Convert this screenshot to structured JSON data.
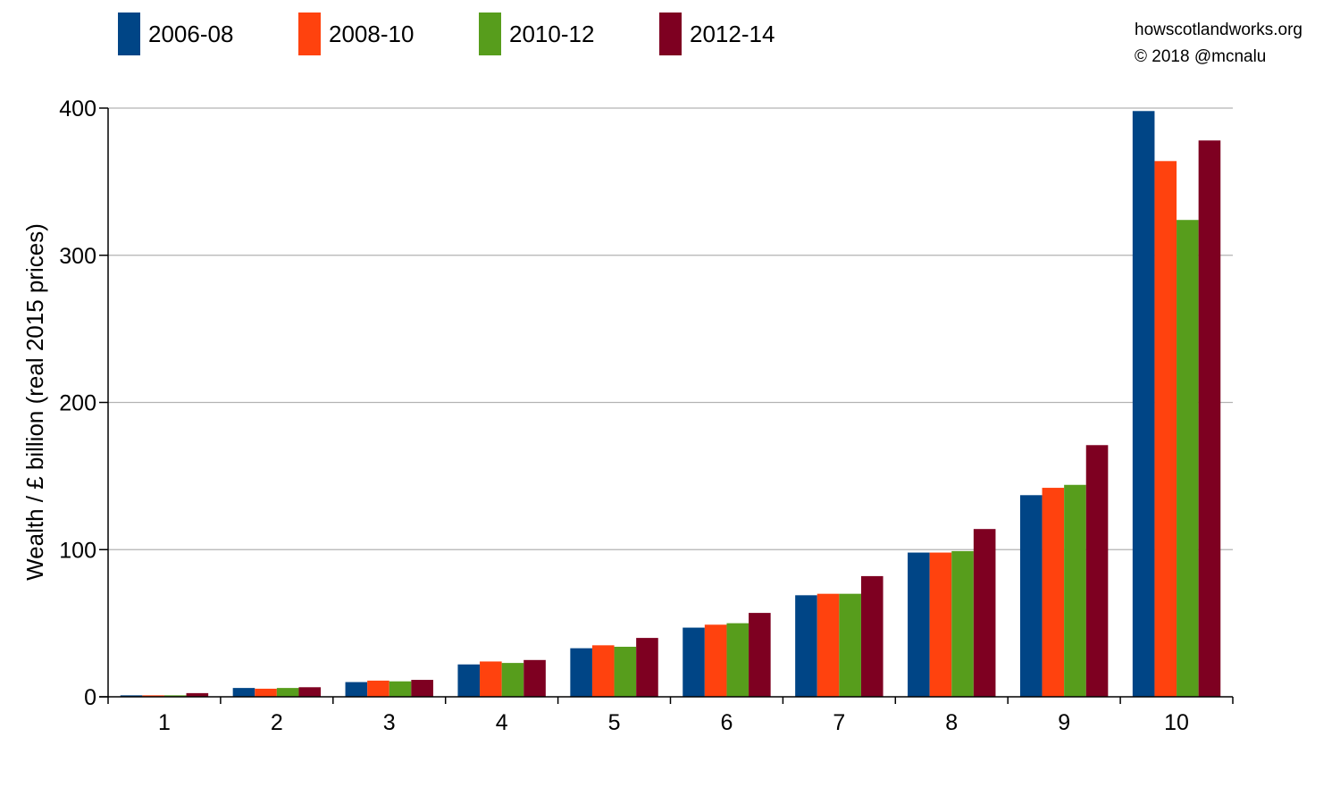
{
  "credits": {
    "site": "howscotlandworks.org",
    "copyright": "© 2018  @mcnalu"
  },
  "chart_data": {
    "type": "bar",
    "title": "",
    "xlabel": "",
    "ylabel": "Wealth / £ billion (real 2015 prices)",
    "ylim": [
      0,
      400
    ],
    "yticks": [
      0,
      100,
      200,
      300,
      400
    ],
    "grid": true,
    "legend_position": "top",
    "categories": [
      "1",
      "2",
      "3",
      "4",
      "5",
      "6",
      "7",
      "8",
      "9",
      "10"
    ],
    "series": [
      {
        "name": "2006-08",
        "color": "#004586",
        "values": [
          1,
          6,
          10,
          22,
          33,
          47,
          69,
          98,
          137,
          398
        ]
      },
      {
        "name": "2008-10",
        "color": "#ff420e",
        "values": [
          1,
          5.5,
          11,
          24,
          35,
          49,
          70,
          98,
          142,
          364
        ]
      },
      {
        "name": "2010-12",
        "color": "#579d1c",
        "values": [
          1,
          6,
          10.5,
          23,
          34,
          50,
          70,
          99,
          144,
          324
        ]
      },
      {
        "name": "2012-14",
        "color": "#7e0021",
        "values": [
          2.5,
          6.5,
          11.5,
          25,
          40,
          57,
          82,
          114,
          171,
          378
        ]
      }
    ]
  }
}
